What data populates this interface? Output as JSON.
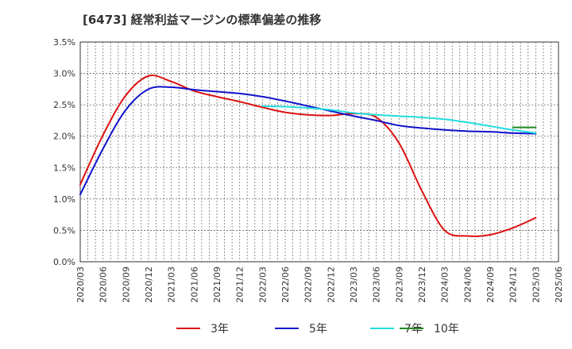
{
  "chart_data": {
    "type": "line",
    "title": "[6473]  経常利益マージンの標準偏差の推移",
    "xlabel": "",
    "ylabel": "",
    "ylim": [
      0,
      3.5
    ],
    "y_ticks": [
      "0.0%",
      "0.5%",
      "1.0%",
      "1.5%",
      "2.0%",
      "2.5%",
      "3.0%",
      "3.5%"
    ],
    "x_ticks": [
      "2020/03",
      "2020/06",
      "2020/09",
      "2020/12",
      "2021/03",
      "2021/06",
      "2021/09",
      "2021/12",
      "2022/03",
      "2022/06",
      "2022/09",
      "2022/12",
      "2023/03",
      "2023/06",
      "2023/09",
      "2023/12",
      "2024/03",
      "2024/06",
      "2024/09",
      "2024/12",
      "2025/03",
      "2025/06"
    ],
    "grid": true,
    "legend_position": "bottom",
    "series": [
      {
        "name": "3年",
        "color": "#dd1111",
        "x": [
          "2020/03",
          "2020/06",
          "2020/09",
          "2020/12",
          "2021/03",
          "2021/06",
          "2021/09",
          "2021/12",
          "2022/03",
          "2022/06",
          "2022/09",
          "2022/12",
          "2023/03",
          "2023/06",
          "2023/09",
          "2023/12",
          "2024/03",
          "2024/06",
          "2024/09",
          "2024/12",
          "2025/03"
        ],
        "values": [
          1.23,
          2.02,
          2.65,
          2.96,
          2.87,
          2.72,
          2.63,
          2.55,
          2.46,
          2.38,
          2.34,
          2.33,
          2.36,
          2.3,
          1.89,
          1.13,
          0.5,
          0.41,
          0.43,
          0.54,
          0.7
        ]
      },
      {
        "name": "5年",
        "color": "#1111cc",
        "x": [
          "2020/03",
          "2020/06",
          "2020/09",
          "2020/12",
          "2021/03",
          "2021/06",
          "2021/09",
          "2021/12",
          "2022/03",
          "2022/06",
          "2022/09",
          "2022/12",
          "2023/03",
          "2023/06",
          "2023/09",
          "2023/12",
          "2024/03",
          "2024/06",
          "2024/09",
          "2024/12",
          "2025/03"
        ],
        "values": [
          1.07,
          1.8,
          2.42,
          2.75,
          2.78,
          2.74,
          2.71,
          2.68,
          2.63,
          2.56,
          2.48,
          2.4,
          2.32,
          2.25,
          2.17,
          2.13,
          2.1,
          2.08,
          2.07,
          2.05,
          2.04
        ]
      },
      {
        "name": "7年",
        "color": "#22dddd",
        "x": [
          "2022/03",
          "2022/06",
          "2022/09",
          "2022/12",
          "2023/03",
          "2023/06",
          "2023/09",
          "2023/12",
          "2024/03",
          "2024/06",
          "2024/09",
          "2024/12",
          "2025/03"
        ],
        "values": [
          2.48,
          2.47,
          2.45,
          2.42,
          2.37,
          2.34,
          2.32,
          2.3,
          2.27,
          2.22,
          2.16,
          2.1,
          2.05
        ]
      },
      {
        "name": "10年",
        "color": "#228822",
        "x": [
          "2024/12",
          "2025/03"
        ],
        "values": [
          2.14,
          2.14
        ]
      }
    ]
  }
}
